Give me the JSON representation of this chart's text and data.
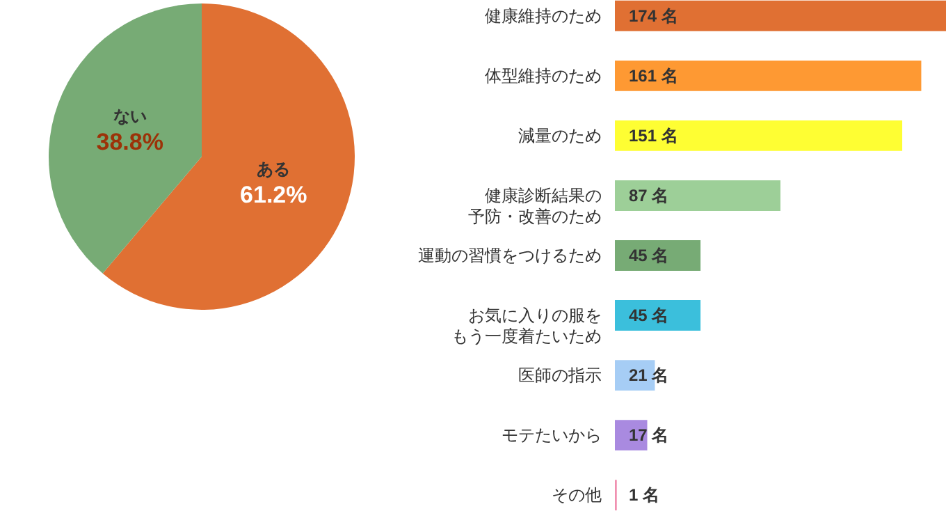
{
  "chart_data": [
    {
      "type": "pie",
      "categories": [
        "ある",
        "ない"
      ],
      "values": [
        61.2,
        38.8
      ],
      "colors": [
        "#e07033",
        "#77ab75"
      ],
      "value_labels": [
        "61.2%",
        "38.8%"
      ]
    },
    {
      "type": "bar",
      "orientation": "horizontal",
      "categories": [
        "健康維持のため",
        "体型維持のため",
        "減量のため",
        "健康診断結果の予防・改善のため",
        "運動の習慣をつけるため",
        "お気に入りの服をもう一度着たいため",
        "医師の指示",
        "モテたいから",
        "その他"
      ],
      "values": [
        174,
        161,
        151,
        87,
        45,
        45,
        21,
        17,
        1
      ],
      "colors": [
        "#e07033",
        "#fe9933",
        "#fefe33",
        "#9dcf98",
        "#77ab75",
        "#3bbfdc",
        "#a6cdf5",
        "#a98ae0",
        "#f090b0"
      ],
      "value_labels": [
        "174 名",
        "161 名",
        "151 名",
        "87 名",
        "45 名",
        "45 名",
        "21 名",
        "17 名",
        "1 名"
      ]
    }
  ]
}
